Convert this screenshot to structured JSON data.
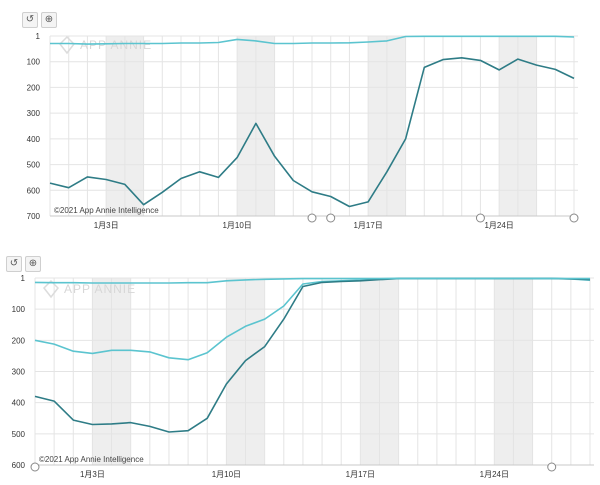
{
  "toolbar": {
    "reset_icon": "reset-icon",
    "zoom_icon": "zoom-in-icon",
    "reset_glyph": "↺",
    "zoom_glyph": "⊕"
  },
  "watermark": "APP ANNIE",
  "copyright": "©2021 App Annie Intelligence",
  "colors": {
    "dark_line": "#2e7c86",
    "light_line": "#5bc4cf",
    "band": "#eeeeee",
    "grid": "#e4e4e4"
  },
  "chart_data": [
    {
      "type": "line",
      "y_reversed": true,
      "ylim": [
        1,
        700
      ],
      "y_ticks": [
        "1",
        "100",
        "200",
        "300",
        "400",
        "500",
        "600",
        "700"
      ],
      "x_tick_labels": [
        {
          "label": "1月3日",
          "index": 3
        },
        {
          "label": "1月10日",
          "index": 10
        },
        {
          "label": "1月17日",
          "index": 17
        },
        {
          "label": "1月24日",
          "index": 24
        }
      ],
      "day_count": 29,
      "shaded_day_ranges": [
        [
          3,
          5
        ],
        [
          10,
          12
        ],
        [
          17,
          19
        ],
        [
          24,
          26
        ]
      ],
      "series": [
        {
          "color": "#5bc4cf",
          "values": [
            30,
            30,
            32,
            31,
            30,
            30,
            30,
            28,
            28,
            26,
            14,
            20,
            30,
            30,
            28,
            28,
            27,
            24,
            20,
            3,
            2,
            2,
            2,
            2,
            2,
            2,
            2,
            2,
            5
          ]
        },
        {
          "color": "#2e7c86",
          "values": [
            572,
            590,
            548,
            558,
            577,
            656,
            608,
            554,
            528,
            550,
            473,
            340,
            468,
            562,
            606,
            624,
            663,
            645,
            528,
            400,
            122,
            92,
            85,
            95,
            132,
            90,
            113,
            130,
            165
          ]
        }
      ],
      "markers": [
        14,
        15,
        23,
        28
      ]
    },
    {
      "type": "line",
      "y_reversed": true,
      "ylim": [
        1,
        600
      ],
      "y_ticks": [
        "1",
        "100",
        "200",
        "300",
        "400",
        "500",
        "600"
      ],
      "x_tick_labels": [
        {
          "label": "1月3日",
          "index": 3
        },
        {
          "label": "1月10日",
          "index": 10
        },
        {
          "label": "1月17日",
          "index": 17
        },
        {
          "label": "1月24日",
          "index": 24
        }
      ],
      "day_count": 30,
      "shaded_day_ranges": [
        [
          3,
          5
        ],
        [
          10,
          12
        ],
        [
          17,
          19
        ],
        [
          24,
          26
        ]
      ],
      "series": [
        {
          "color": "#5bc4cf",
          "values": [
            200,
            212,
            235,
            242,
            232,
            232,
            237,
            256,
            262,
            240,
            190,
            155,
            132,
            90,
            20,
            12,
            10,
            8,
            4,
            2,
            2,
            2,
            2,
            2,
            2,
            2,
            2,
            2,
            4,
            8
          ]
        },
        {
          "color": "#2e7c86",
          "values": [
            380,
            395,
            456,
            470,
            468,
            464,
            476,
            494,
            490,
            450,
            340,
            265,
            220,
            132,
            28,
            15,
            12,
            10,
            6,
            3,
            3,
            3,
            3,
            3,
            3,
            3,
            3,
            3,
            4,
            6
          ]
        },
        {
          "color": "#5bc4cf",
          "values": [
            15,
            16,
            16,
            17,
            17,
            17,
            17,
            17,
            16,
            16,
            10,
            7,
            5,
            4,
            3,
            3,
            3,
            3,
            3,
            3,
            3,
            3,
            3,
            3,
            3,
            3,
            3,
            3,
            3,
            3
          ]
        }
      ],
      "markers": [
        0,
        27
      ]
    }
  ]
}
